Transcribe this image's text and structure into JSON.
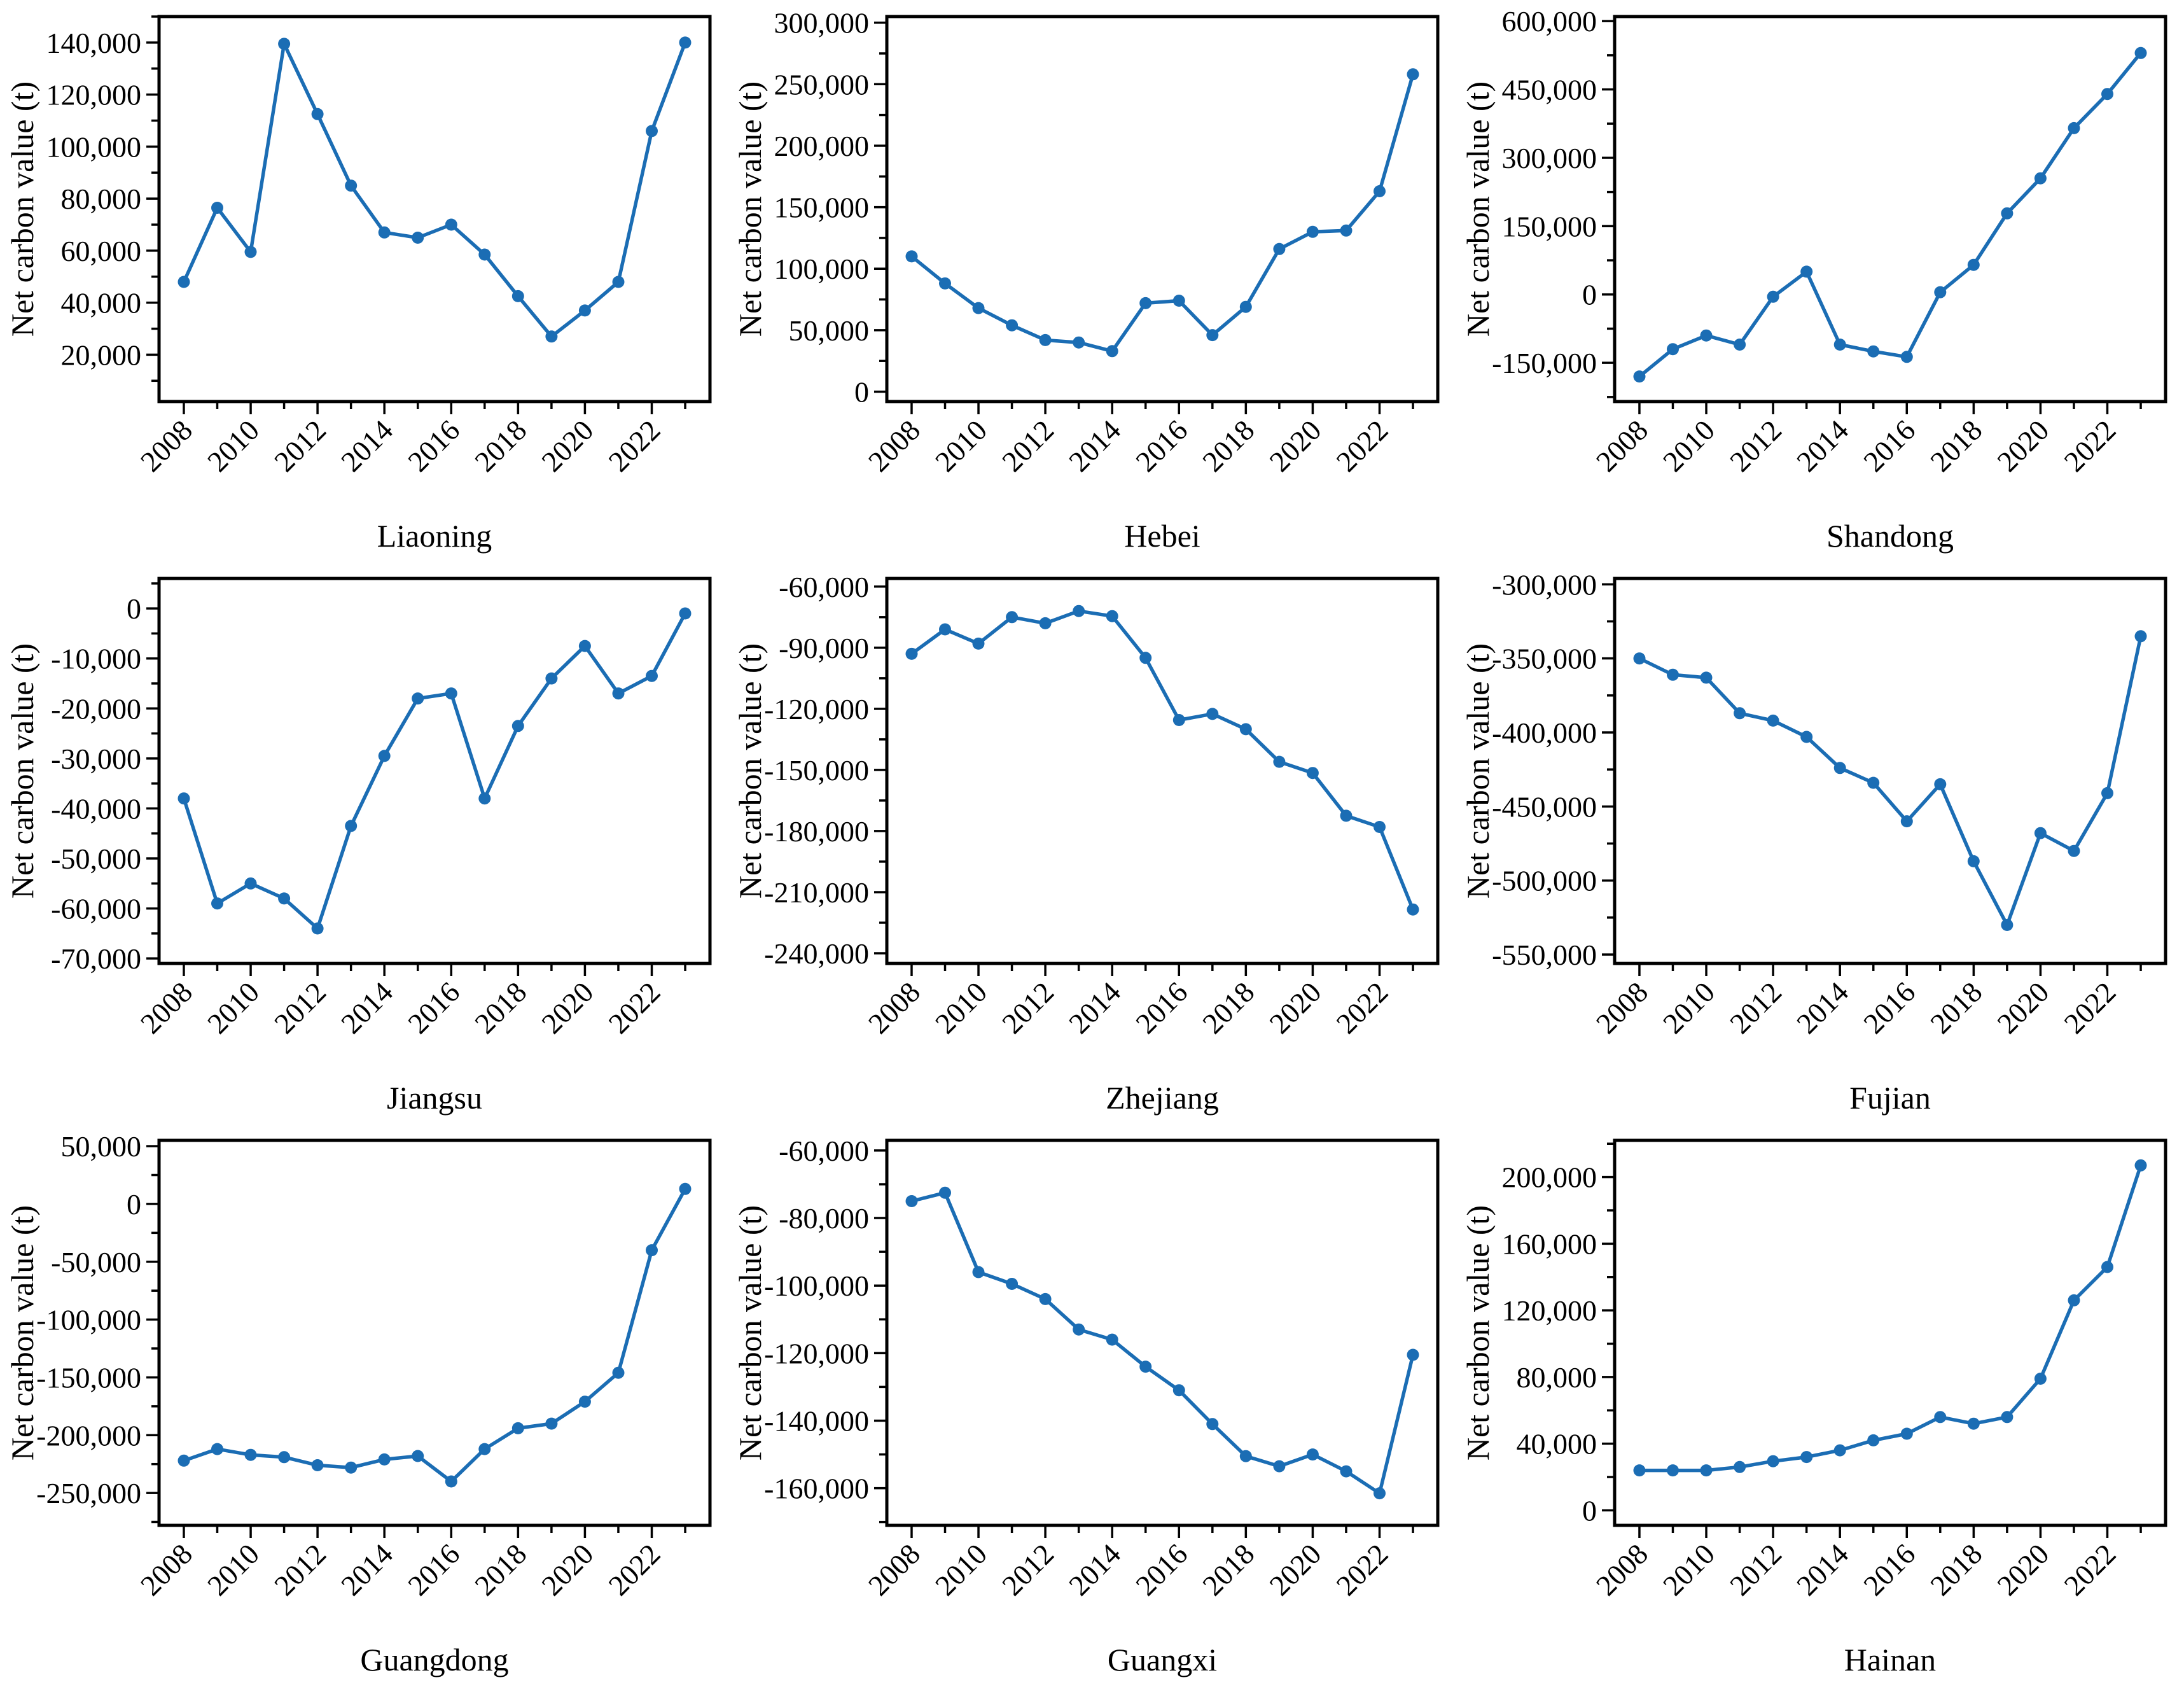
{
  "figure": {
    "background": "#ffffff",
    "axis_color": "#000000",
    "series_color": "#1b6db4",
    "marker": "circle",
    "grid": false,
    "legend": null
  },
  "chart_data": {
    "type": "line",
    "ylabel": "Net carbon value (t)",
    "years": [
      2008,
      2009,
      2010,
      2011,
      2012,
      2013,
      2014,
      2015,
      2016,
      2017,
      2018,
      2019,
      2020,
      2021,
      2022,
      2023
    ],
    "xtick_years": [
      2008,
      2010,
      2012,
      2014,
      2016,
      2018,
      2020,
      2022
    ],
    "layout": "3x3 grid of subplots, one per province; x tick labels rotated 45 degrees; ticks outside; no grid lines",
    "subplots": [
      {
        "title": "Liaoning",
        "values": [
          48000,
          76500,
          59500,
          139500,
          112500,
          85000,
          67000,
          65000,
          70000,
          58500,
          42500,
          27000,
          37000,
          48000,
          106000,
          140000
        ],
        "yticks": [
          20000,
          40000,
          60000,
          80000,
          100000,
          120000,
          140000
        ],
        "ylim": [
          2000,
          150000
        ]
      },
      {
        "title": "Hebei",
        "values": [
          110000,
          88000,
          68000,
          54000,
          42000,
          40000,
          33000,
          72000,
          74000,
          46000,
          69000,
          116000,
          130000,
          131000,
          163000,
          258000
        ],
        "yticks": [
          0,
          50000,
          100000,
          150000,
          200000,
          250000,
          300000
        ],
        "ylim": [
          -8000,
          305000
        ]
      },
      {
        "title": "Shandong",
        "values": [
          -180000,
          -120000,
          -90000,
          -110000,
          -5000,
          50000,
          -110000,
          -125000,
          -137000,
          5000,
          65000,
          178000,
          255000,
          365000,
          440000,
          530000
        ],
        "yticks": [
          -150000,
          0,
          150000,
          300000,
          450000,
          600000
        ],
        "ylim": [
          -235000,
          610000
        ]
      },
      {
        "title": "Jiangsu",
        "values": [
          -38000,
          -59000,
          -55000,
          -58000,
          -64000,
          -43500,
          -29500,
          -18000,
          -17000,
          -38000,
          -23500,
          -14000,
          -7500,
          -17000,
          -13500,
          -1000
        ],
        "yticks": [
          -70000,
          -60000,
          -50000,
          -40000,
          -30000,
          -20000,
          -10000,
          0
        ],
        "ylim": [
          -71000,
          6000
        ]
      },
      {
        "title": "Zhejiang",
        "values": [
          -93000,
          -81000,
          -88000,
          -75000,
          -78000,
          -72000,
          -74500,
          -95000,
          -125500,
          -122500,
          -130000,
          -146000,
          -151500,
          -172500,
          -178000,
          -218500
        ],
        "yticks": [
          -240000,
          -210000,
          -180000,
          -150000,
          -120000,
          -90000,
          -60000
        ],
        "ylim": [
          -245000,
          -56000
        ]
      },
      {
        "title": "Fujian",
        "values": [
          -350000,
          -361000,
          -363000,
          -387000,
          -392000,
          -403000,
          -424000,
          -434000,
          -460000,
          -435000,
          -487000,
          -530000,
          -468000,
          -480000,
          -441000,
          -335000
        ],
        "yticks": [
          -550000,
          -500000,
          -450000,
          -400000,
          -350000,
          -300000
        ],
        "ylim": [
          -556000,
          -296000
        ]
      },
      {
        "title": "Guangdong",
        "values": [
          -222000,
          -212000,
          -217000,
          -219000,
          -226000,
          -228000,
          -221000,
          -218000,
          -240000,
          -212000,
          -194000,
          -190000,
          -171000,
          -146000,
          -40000,
          13000
        ],
        "yticks": [
          -250000,
          -200000,
          -150000,
          -100000,
          -50000,
          0,
          50000
        ],
        "ylim": [
          -278000,
          55000
        ]
      },
      {
        "title": "Guangxi",
        "values": [
          -75000,
          -72500,
          -96000,
          -99500,
          -104000,
          -113000,
          -116000,
          -124000,
          -131000,
          -141000,
          -150500,
          -153500,
          -150000,
          -155000,
          -161500,
          -120500
        ],
        "yticks": [
          -160000,
          -140000,
          -120000,
          -100000,
          -80000,
          -60000
        ],
        "ylim": [
          -171000,
          -57000
        ]
      },
      {
        "title": "Hainan",
        "values": [
          24000,
          24000,
          24000,
          26000,
          29500,
          32000,
          36000,
          42000,
          46000,
          56000,
          52000,
          56000,
          79000,
          126000,
          146000,
          207000
        ],
        "yticks": [
          0,
          40000,
          80000,
          120000,
          160000,
          200000
        ],
        "ylim": [
          -9000,
          222000
        ]
      }
    ]
  }
}
